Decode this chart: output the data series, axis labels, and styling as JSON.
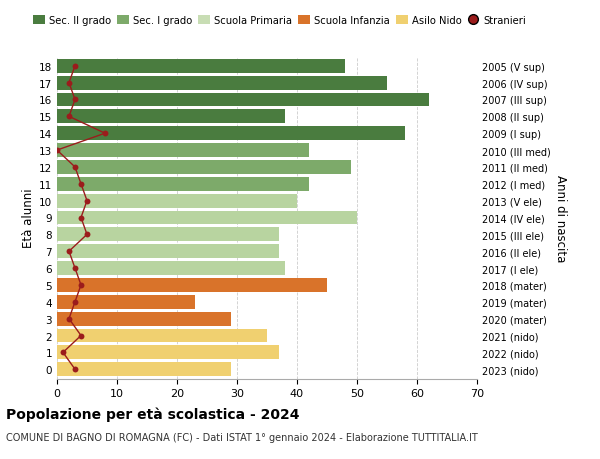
{
  "ages": [
    18,
    17,
    16,
    15,
    14,
    13,
    12,
    11,
    10,
    9,
    8,
    7,
    6,
    5,
    4,
    3,
    2,
    1,
    0
  ],
  "labels_right": [
    "2005 (V sup)",
    "2006 (IV sup)",
    "2007 (III sup)",
    "2008 (II sup)",
    "2009 (I sup)",
    "2010 (III med)",
    "2011 (II med)",
    "2012 (I med)",
    "2013 (V ele)",
    "2014 (IV ele)",
    "2015 (III ele)",
    "2016 (II ele)",
    "2017 (I ele)",
    "2018 (mater)",
    "2019 (mater)",
    "2020 (mater)",
    "2021 (nido)",
    "2022 (nido)",
    "2023 (nido)"
  ],
  "bar_values": [
    48,
    55,
    62,
    38,
    58,
    42,
    49,
    42,
    40,
    50,
    37,
    37,
    38,
    45,
    23,
    29,
    35,
    37,
    29
  ],
  "bar_colors": [
    "#4a7c3f",
    "#4a7c3f",
    "#4a7c3f",
    "#4a7c3f",
    "#4a7c3f",
    "#7daa6a",
    "#7daa6a",
    "#7daa6a",
    "#b8d4a0",
    "#b8d4a0",
    "#b8d4a0",
    "#b8d4a0",
    "#b8d4a0",
    "#d9732a",
    "#d9732a",
    "#d9732a",
    "#f0d070",
    "#f0d070",
    "#f0d070"
  ],
  "stranieri_values": [
    3,
    2,
    3,
    2,
    8,
    0,
    3,
    4,
    5,
    4,
    5,
    2,
    3,
    4,
    3,
    2,
    4,
    1,
    3
  ],
  "title": "Popolazione per età scolastica - 2024",
  "subtitle": "COMUNE DI BAGNO DI ROMAGNA (FC) - Dati ISTAT 1° gennaio 2024 - Elaborazione TUTTITALIA.IT",
  "ylabel": "Età alunni",
  "ylabel_right": "Anni di nascita",
  "xlim": [
    0,
    70
  ],
  "xticks": [
    0,
    10,
    20,
    30,
    40,
    50,
    60,
    70
  ],
  "legend_labels": [
    "Sec. II grado",
    "Sec. I grado",
    "Scuola Primaria",
    "Scuola Infanzia",
    "Asilo Nido",
    "Stranieri"
  ],
  "legend_colors": [
    "#4a7c3f",
    "#7daa6a",
    "#c8ddb4",
    "#d9732a",
    "#f0d070",
    "#cc2222"
  ],
  "stranieri_color": "#9b1c1c",
  "bg_color": "#ffffff",
  "grid_color": "#cccccc"
}
